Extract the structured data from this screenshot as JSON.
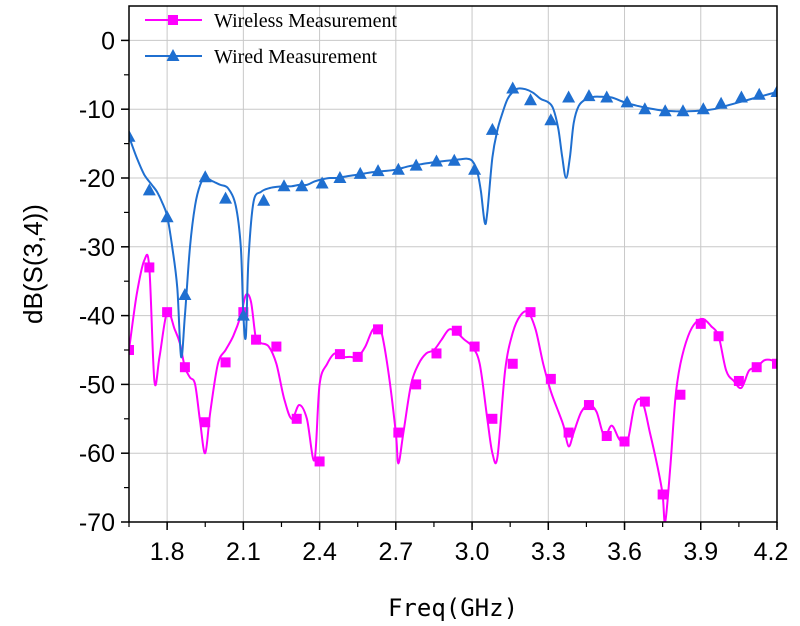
{
  "chart_data": {
    "type": "line",
    "xlabel": "Freq(GHz)",
    "ylabel": "dB(S(3,4))",
    "xlim": [
      1.65,
      4.2
    ],
    "ylim": [
      -70,
      5
    ],
    "x_ticks": [
      1.8,
      2.1,
      2.4,
      2.7,
      3.0,
      3.3,
      3.6,
      3.9,
      4.2
    ],
    "x_tick_labels": [
      "1.8",
      "2.1",
      "2.4",
      "2.7",
      "3.0",
      "3.3",
      "3.6",
      "3.9",
      "4.2"
    ],
    "y_ticks": [
      0,
      -10,
      -20,
      -30,
      -40,
      -50,
      -60,
      -70
    ],
    "y_tick_labels": [
      "0",
      "-10",
      "-20",
      "-30",
      "-40",
      "-50",
      "-60",
      "-70"
    ],
    "grid": true,
    "legend_position": "top-left",
    "series": [
      {
        "name": "Wireless Measurement",
        "color": "#ff00ff",
        "marker": "square",
        "x": [
          1.65,
          1.68,
          1.71,
          1.73,
          1.75,
          1.77,
          1.8,
          1.83,
          1.85,
          1.87,
          1.89,
          1.91,
          1.93,
          1.95,
          1.97,
          2.0,
          2.03,
          2.06,
          2.09,
          2.11,
          2.13,
          2.15,
          2.17,
          2.2,
          2.23,
          2.26,
          2.29,
          2.32,
          2.35,
          2.38,
          2.4,
          2.43,
          2.46,
          2.49,
          2.52,
          2.55,
          2.58,
          2.61,
          2.64,
          2.67,
          2.7,
          2.71,
          2.73,
          2.76,
          2.79,
          2.82,
          2.85,
          2.88,
          2.91,
          2.94,
          2.97,
          3.0,
          3.03,
          3.06,
          3.08,
          3.1,
          3.13,
          3.16,
          3.19,
          3.22,
          3.25,
          3.28,
          3.31,
          3.34,
          3.36,
          3.38,
          3.4,
          3.43,
          3.46,
          3.49,
          3.52,
          3.55,
          3.58,
          3.61,
          3.64,
          3.67,
          3.7,
          3.73,
          3.75,
          3.76,
          3.78,
          3.8,
          3.82,
          3.85,
          3.88,
          3.91,
          3.94,
          3.97,
          4.0,
          4.03,
          4.06,
          4.09,
          4.12,
          4.15,
          4.18,
          4.2
        ],
        "values": [
          -45,
          -37,
          -32,
          -33,
          -49.5,
          -46,
          -39.5,
          -42,
          -44,
          -47.5,
          -49,
          -50,
          -55.5,
          -60,
          -54,
          -47,
          -45,
          -43,
          -40,
          -37,
          -38,
          -43.5,
          -44,
          -44.5,
          -47,
          -52,
          -55,
          -53,
          -55,
          -61,
          -50,
          -47,
          -45.5,
          -46,
          -46,
          -46,
          -44.5,
          -42,
          -42,
          -48,
          -57,
          -61.5,
          -57,
          -50,
          -47,
          -45.5,
          -45,
          -43.5,
          -42,
          -42.5,
          -43.5,
          -44.5,
          -47,
          -55,
          -60,
          -60.5,
          -48,
          -42.5,
          -40,
          -39.5,
          -42,
          -47,
          -51,
          -54,
          -56,
          -59,
          -57,
          -54,
          -53,
          -54,
          -57.5,
          -56,
          -58,
          -58.5,
          -53,
          -52.5,
          -57,
          -62,
          -66,
          -70,
          -62,
          -52,
          -47,
          -43,
          -41,
          -40.5,
          -41.5,
          -43,
          -48,
          -49.5,
          -50.5,
          -48,
          -47.5,
          -46.5,
          -46.5,
          -47
        ],
        "markers_x": [
          1.65,
          1.73,
          1.8,
          1.87,
          1.95,
          2.03,
          2.1,
          2.15,
          2.23,
          2.31,
          2.4,
          2.48,
          2.55,
          2.63,
          2.71,
          2.78,
          2.86,
          2.94,
          3.01,
          3.08,
          3.16,
          3.23,
          3.31,
          3.38,
          3.46,
          3.53,
          3.6,
          3.68,
          3.75,
          3.82,
          3.9,
          3.97,
          4.05,
          4.12,
          4.2
        ],
        "markers_y": [
          -45,
          -33,
          -39.5,
          -47.5,
          -55.5,
          -46.8,
          -39.5,
          -43.5,
          -44.5,
          -55,
          -61.2,
          -45.6,
          -46,
          -42,
          -57,
          -50,
          -45.5,
          -42.2,
          -44.5,
          -55,
          -47,
          -39.5,
          -49.2,
          -57,
          -53,
          -57.5,
          -58.3,
          -52.5,
          -66,
          -51.5,
          -41.2,
          -43,
          -49.5,
          -47.5,
          -47
        ]
      },
      {
        "name": "Wired Measurement",
        "color": "#1f6fd0",
        "marker": "triangle",
        "x": [
          1.65,
          1.68,
          1.71,
          1.74,
          1.76,
          1.78,
          1.8,
          1.82,
          1.84,
          1.855,
          1.87,
          1.89,
          1.91,
          1.93,
          1.95,
          1.98,
          2.01,
          2.04,
          2.07,
          2.09,
          2.1,
          2.11,
          2.12,
          2.14,
          2.17,
          2.2,
          2.23,
          2.26,
          2.29,
          2.32,
          2.35,
          2.38,
          2.41,
          2.44,
          2.47,
          2.5,
          2.55,
          2.6,
          2.65,
          2.7,
          2.75,
          2.8,
          2.85,
          2.9,
          2.95,
          2.98,
          3.0,
          3.02,
          3.035,
          3.05,
          3.06,
          3.08,
          3.1,
          3.12,
          3.14,
          3.16,
          3.18,
          3.21,
          3.24,
          3.27,
          3.3,
          3.32,
          3.34,
          3.355,
          3.37,
          3.385,
          3.4,
          3.42,
          3.45,
          3.48,
          3.51,
          3.55,
          3.6,
          3.65,
          3.7,
          3.75,
          3.8,
          3.85,
          3.9,
          3.95,
          4.0,
          4.05,
          4.1,
          4.15,
          4.2
        ],
        "values": [
          -14,
          -17,
          -19.5,
          -21,
          -22,
          -23.5,
          -25.5,
          -30,
          -36,
          -46,
          -40,
          -30,
          -24,
          -21,
          -20,
          -20.5,
          -21,
          -21.5,
          -24,
          -30,
          -40,
          -43,
          -32,
          -23.5,
          -22,
          -21.5,
          -21.3,
          -21.2,
          -21.2,
          -21,
          -21,
          -20.5,
          -20.2,
          -20,
          -20,
          -19.8,
          -19.5,
          -19.2,
          -19,
          -18.8,
          -18.3,
          -18,
          -17.7,
          -17.5,
          -17.3,
          -17.2,
          -17.5,
          -19,
          -22,
          -26.5,
          -25,
          -17,
          -13,
          -10.5,
          -8.5,
          -7.5,
          -7,
          -7.1,
          -7.6,
          -8.5,
          -9,
          -10,
          -13,
          -17,
          -20,
          -17,
          -12,
          -9.5,
          -8.5,
          -8.2,
          -8.2,
          -8.3,
          -9,
          -9.5,
          -9.9,
          -10.2,
          -10.3,
          -10.3,
          -10.2,
          -10,
          -9.5,
          -9,
          -8.5,
          -8,
          -7.5
        ],
        "markers_x": [
          1.65,
          1.73,
          1.8,
          1.87,
          1.95,
          2.03,
          2.1,
          2.18,
          2.26,
          2.33,
          2.41,
          2.48,
          2.56,
          2.63,
          2.71,
          2.78,
          2.86,
          2.93,
          3.01,
          3.08,
          3.16,
          3.23,
          3.31,
          3.38,
          3.46,
          3.53,
          3.61,
          3.68,
          3.76,
          3.83,
          3.91,
          3.98,
          4.06,
          4.13,
          4.2
        ],
        "markers_y": [
          -14,
          -21.8,
          -25.7,
          -37,
          -19.9,
          -23,
          -40,
          -23.3,
          -21.2,
          -21.2,
          -20.8,
          -20,
          -19.4,
          -19,
          -18.8,
          -18.2,
          -17.6,
          -17.5,
          -18.8,
          -13,
          -7,
          -8.7,
          -11.6,
          -8.3,
          -8.1,
          -8.3,
          -9,
          -10,
          -10.3,
          -10.3,
          -10,
          -9.2,
          -8.3,
          -7.9,
          -7.5
        ]
      }
    ]
  }
}
